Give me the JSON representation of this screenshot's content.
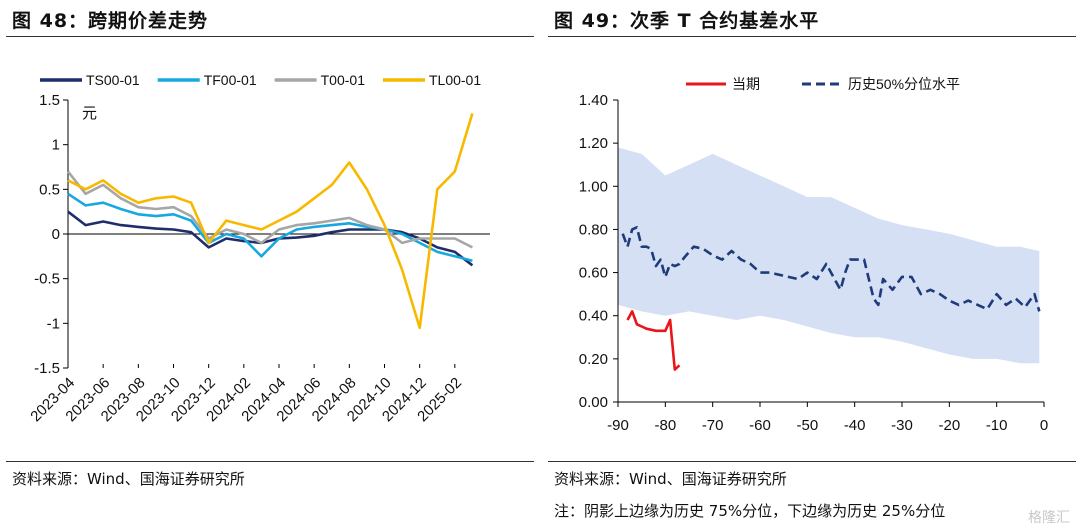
{
  "left": {
    "figure_title": "图 48：跨期价差走势",
    "source": "资料来源：Wind、国海证券研究所"
  },
  "right": {
    "figure_title": "图 49：次季 T 合约基差水平",
    "source": "资料来源：Wind、国海证券研究所",
    "note": "注：阴影上边缘为历史 75%分位，下边缘为历史 25%分位"
  },
  "watermark": "格隆汇",
  "chart_data": [
    {
      "type": "line",
      "unit_label": "元",
      "ylim": [
        -1.5,
        1.5
      ],
      "yticks": [
        -1.5,
        -1,
        -0.5,
        0,
        0.5,
        1,
        1.5
      ],
      "ytick_labels": [
        "-1.5",
        "-1",
        "-0.5",
        "0",
        "0.5",
        "1",
        "1.5"
      ],
      "xlim": [
        "2023-04",
        "2025-04"
      ],
      "xtick_labels": [
        "2023-04",
        "2023-06",
        "2023-08",
        "2023-10",
        "2023-12",
        "2024-02",
        "2024-04",
        "2024-06",
        "2024-08",
        "2024-10",
        "2024-12",
        "2025-02"
      ],
      "legend_position": "top",
      "grid": false,
      "series": [
        {
          "name": "TS00-01",
          "color": "#1f2d6b",
          "points": [
            [
              "2023-04",
              0.25
            ],
            [
              "2023-05",
              0.1
            ],
            [
              "2023-06",
              0.14
            ],
            [
              "2023-07",
              0.1
            ],
            [
              "2023-08",
              0.08
            ],
            [
              "2023-09",
              0.06
            ],
            [
              "2023-10",
              0.05
            ],
            [
              "2023-11",
              0.02
            ],
            [
              "2023-12",
              -0.15
            ],
            [
              "2024-01",
              -0.05
            ],
            [
              "2024-02",
              -0.08
            ],
            [
              "2024-03",
              -0.1
            ],
            [
              "2024-04",
              -0.05
            ],
            [
              "2024-05",
              -0.04
            ],
            [
              "2024-06",
              -0.02
            ],
            [
              "2024-07",
              0.02
            ],
            [
              "2024-08",
              0.05
            ],
            [
              "2024-09",
              0.05
            ],
            [
              "2024-10",
              0.05
            ],
            [
              "2024-11",
              0.02
            ],
            [
              "2024-12",
              -0.05
            ],
            [
              "2025-01",
              -0.15
            ],
            [
              "2025-02",
              -0.2
            ],
            [
              "2025-03",
              -0.35
            ]
          ]
        },
        {
          "name": "TF00-01",
          "color": "#18a8e0",
          "points": [
            [
              "2023-04",
              0.45
            ],
            [
              "2023-05",
              0.32
            ],
            [
              "2023-06",
              0.35
            ],
            [
              "2023-07",
              0.28
            ],
            [
              "2023-08",
              0.22
            ],
            [
              "2023-09",
              0.2
            ],
            [
              "2023-10",
              0.22
            ],
            [
              "2023-11",
              0.15
            ],
            [
              "2023-12",
              -0.1
            ],
            [
              "2024-01",
              0.0
            ],
            [
              "2024-02",
              -0.05
            ],
            [
              "2024-03",
              -0.25
            ],
            [
              "2024-04",
              -0.05
            ],
            [
              "2024-05",
              0.05
            ],
            [
              "2024-06",
              0.08
            ],
            [
              "2024-07",
              0.1
            ],
            [
              "2024-08",
              0.12
            ],
            [
              "2024-09",
              0.08
            ],
            [
              "2024-10",
              0.05
            ],
            [
              "2024-11",
              0.0
            ],
            [
              "2024-12",
              -0.1
            ],
            [
              "2025-01",
              -0.2
            ],
            [
              "2025-02",
              -0.25
            ],
            [
              "2025-03",
              -0.3
            ]
          ]
        },
        {
          "name": "T00-01",
          "color": "#a6a6a6",
          "points": [
            [
              "2023-04",
              0.7
            ],
            [
              "2023-05",
              0.45
            ],
            [
              "2023-06",
              0.55
            ],
            [
              "2023-07",
              0.4
            ],
            [
              "2023-08",
              0.3
            ],
            [
              "2023-09",
              0.28
            ],
            [
              "2023-10",
              0.3
            ],
            [
              "2023-11",
              0.2
            ],
            [
              "2023-12",
              -0.05
            ],
            [
              "2024-01",
              0.05
            ],
            [
              "2024-02",
              0.0
            ],
            [
              "2024-03",
              -0.1
            ],
            [
              "2024-04",
              0.05
            ],
            [
              "2024-05",
              0.1
            ],
            [
              "2024-06",
              0.12
            ],
            [
              "2024-07",
              0.15
            ],
            [
              "2024-08",
              0.18
            ],
            [
              "2024-09",
              0.1
            ],
            [
              "2024-10",
              0.05
            ],
            [
              "2024-11",
              -0.1
            ],
            [
              "2024-12",
              -0.05
            ],
            [
              "2025-01",
              -0.05
            ],
            [
              "2025-02",
              -0.05
            ],
            [
              "2025-03",
              -0.15
            ]
          ]
        },
        {
          "name": "TL00-01",
          "color": "#f7b900",
          "points": [
            [
              "2023-04",
              0.6
            ],
            [
              "2023-05",
              0.5
            ],
            [
              "2023-06",
              0.6
            ],
            [
              "2023-07",
              0.45
            ],
            [
              "2023-08",
              0.35
            ],
            [
              "2023-09",
              0.4
            ],
            [
              "2023-10",
              0.42
            ],
            [
              "2023-11",
              0.35
            ],
            [
              "2023-12",
              -0.1
            ],
            [
              "2024-01",
              0.15
            ],
            [
              "2024-02",
              0.1
            ],
            [
              "2024-03",
              0.05
            ],
            [
              "2024-04",
              0.15
            ],
            [
              "2024-05",
              0.25
            ],
            [
              "2024-06",
              0.4
            ],
            [
              "2024-07",
              0.55
            ],
            [
              "2024-08",
              0.8
            ],
            [
              "2024-09",
              0.5
            ],
            [
              "2024-10",
              0.1
            ],
            [
              "2024-11",
              -0.4
            ],
            [
              "2024-12",
              -1.05
            ],
            [
              "2025-01",
              0.5
            ],
            [
              "2025-02",
              0.7
            ],
            [
              "2025-03",
              1.35
            ]
          ]
        }
      ]
    },
    {
      "type": "line",
      "ylim": [
        0,
        1.4
      ],
      "yticks": [
        0,
        0.2,
        0.4,
        0.6,
        0.8,
        1.0,
        1.2,
        1.4
      ],
      "ytick_labels": [
        "0.00",
        "0.20",
        "0.40",
        "0.60",
        "0.80",
        "1.00",
        "1.20",
        "1.40"
      ],
      "xlim": [
        -90,
        0
      ],
      "xticks": [
        -90,
        -80,
        -70,
        -60,
        -50,
        -40,
        -30,
        -20,
        -10,
        0
      ],
      "xtick_labels": [
        "-90",
        "-80",
        "-70",
        "-60",
        "-50",
        "-40",
        "-30",
        "-20",
        "-10",
        "0"
      ],
      "legend_position": "top",
      "grid": false,
      "band": {
        "color": "#d5e0f5",
        "x": [
          -90,
          -85,
          -80,
          -75,
          -70,
          -65,
          -60,
          -55,
          -50,
          -45,
          -40,
          -35,
          -30,
          -25,
          -20,
          -15,
          -10,
          -5,
          -1
        ],
        "upper": [
          1.18,
          1.15,
          1.05,
          1.1,
          1.15,
          1.1,
          1.05,
          1.0,
          0.95,
          0.95,
          0.9,
          0.85,
          0.82,
          0.8,
          0.78,
          0.75,
          0.72,
          0.72,
          0.7
        ],
        "lower": [
          0.45,
          0.42,
          0.4,
          0.42,
          0.4,
          0.38,
          0.4,
          0.38,
          0.35,
          0.32,
          0.3,
          0.3,
          0.28,
          0.25,
          0.22,
          0.2,
          0.2,
          0.18,
          0.18
        ]
      },
      "series": [
        {
          "name": "当期",
          "color": "#e8151a",
          "style": "solid",
          "x": [
            -88,
            -87,
            -86,
            -85,
            -84,
            -82,
            -80,
            -79,
            -78,
            -77
          ],
          "values": [
            0.38,
            0.42,
            0.36,
            0.35,
            0.34,
            0.33,
            0.33,
            0.38,
            0.15,
            0.17
          ]
        },
        {
          "name": "历史50%分位水平",
          "color": "#1f3b7a",
          "style": "dashed",
          "x": [
            -89,
            -88,
            -87,
            -86,
            -85,
            -84,
            -83,
            -82,
            -81,
            -80,
            -79,
            -78,
            -77,
            -76,
            -74,
            -72,
            -70,
            -68,
            -66,
            -64,
            -62,
            -60,
            -58,
            -56,
            -54,
            -52,
            -50,
            -48,
            -46,
            -44,
            -43,
            -42,
            -41,
            -40,
            -38,
            -36,
            -35,
            -34,
            -32,
            -30,
            -28,
            -26,
            -24,
            -22,
            -20,
            -18,
            -16,
            -14,
            -12,
            -10,
            -8,
            -6,
            -4,
            -2,
            -1
          ],
          "values": [
            0.78,
            0.72,
            0.8,
            0.81,
            0.72,
            0.72,
            0.71,
            0.63,
            0.66,
            0.58,
            0.64,
            0.63,
            0.64,
            0.67,
            0.72,
            0.71,
            0.68,
            0.66,
            0.7,
            0.66,
            0.64,
            0.6,
            0.6,
            0.59,
            0.58,
            0.57,
            0.6,
            0.57,
            0.64,
            0.56,
            0.52,
            0.6,
            0.66,
            0.66,
            0.66,
            0.48,
            0.45,
            0.57,
            0.52,
            0.58,
            0.58,
            0.5,
            0.52,
            0.5,
            0.47,
            0.45,
            0.47,
            0.45,
            0.43,
            0.5,
            0.45,
            0.48,
            0.44,
            0.5,
            0.42
          ]
        }
      ]
    }
  ]
}
